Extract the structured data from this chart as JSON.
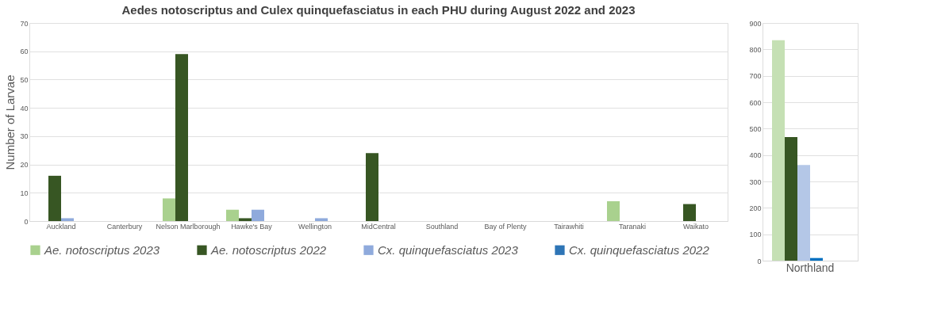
{
  "chart_data": [
    {
      "type": "bar",
      "title": "Aedes notoscriptus and Culex quinquefasciatus in each PHU during August 2022 and 2023",
      "ylabel": "Number of Larvae",
      "categories": [
        "Auckland",
        "Canterbury",
        "Nelson Marlborough",
        "Hawke's Bay",
        "Wellington",
        "MidCentral",
        "Southland",
        "Bay of Plenty",
        "Tairawhiti",
        "Taranaki",
        "Waikato"
      ],
      "series": [
        {
          "name": "Ae. notoscriptus 2023",
          "color": "#a9d18e",
          "values": [
            0,
            0,
            8,
            4,
            0,
            0,
            0,
            0,
            0,
            7,
            0
          ]
        },
        {
          "name": "Ae. notoscriptus 2022",
          "color": "#375623",
          "values": [
            16,
            0,
            59,
            1,
            0,
            24,
            0,
            0,
            0,
            0,
            6
          ]
        },
        {
          "name": "Cx. quinquefasciatus 2023",
          "color": "#8faadc",
          "values": [
            1,
            0,
            0,
            4,
            1,
            0,
            0,
            0,
            0,
            0,
            0
          ]
        },
        {
          "name": "Cx. quinquefasciatus 2022",
          "color": "#2e75b6",
          "values": [
            0,
            0,
            0,
            0,
            0,
            0,
            0,
            0,
            0,
            0,
            0
          ]
        }
      ],
      "ylim": [
        0,
        70
      ],
      "yticks": [
        0,
        10,
        20,
        30,
        40,
        50,
        60,
        70
      ],
      "grid": "y",
      "legend": "bottom"
    },
    {
      "type": "bar",
      "categories": [
        "Northland"
      ],
      "series": [
        {
          "color": "#c5e0b4",
          "values": [
            835
          ]
        },
        {
          "color": "#375623",
          "values": [
            468
          ]
        },
        {
          "color": "#b4c7e7",
          "values": [
            362
          ]
        },
        {
          "color": "#0070c0",
          "values": [
            10
          ]
        }
      ],
      "ylim": [
        0,
        900
      ],
      "yticks": [
        0,
        100,
        200,
        300,
        400,
        500,
        600,
        700,
        800,
        900
      ],
      "grid": "y",
      "legend": false
    }
  ]
}
